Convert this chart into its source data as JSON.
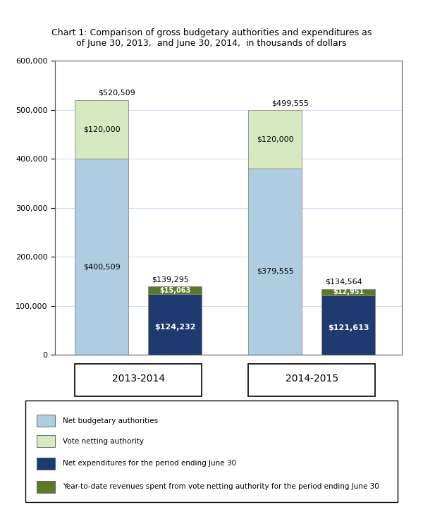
{
  "title": "Chart 1: Comparison of gross budgetary authorities and expenditures as\nof June 30, 2013,  and June 30, 2014,  in thousands of dollars",
  "colors": {
    "net_budgetary": "#AECDE1",
    "vote_netting": "#D6E8C0",
    "net_expenditures": "#1E3A6E",
    "ytd_revenues": "#5A7A2A"
  },
  "bar1_values_2013": [
    400509,
    120000
  ],
  "bar1_values_2014": [
    379555,
    120000
  ],
  "bar2_values_2013": [
    124232,
    15063
  ],
  "bar2_values_2014": [
    121613,
    12951
  ],
  "bar1_totals_2013": "$520,509",
  "bar1_totals_2014": "$499,555",
  "bar2_totals_2013": "$139,295",
  "bar2_totals_2014": "$134,564",
  "legend_labels": [
    "Net budgetary authorities",
    "Vote netting authority",
    "Net expenditures for the period ending June 30",
    "Year-to-date revenues spent from vote netting authority for the period ending June 30"
  ],
  "group_labels": [
    "2013-2014",
    "2014-2015"
  ],
  "yticks": [
    0,
    100000,
    200000,
    300000,
    400000,
    500000,
    600000
  ],
  "ylim": [
    0,
    600000
  ],
  "background_color": "#ffffff"
}
